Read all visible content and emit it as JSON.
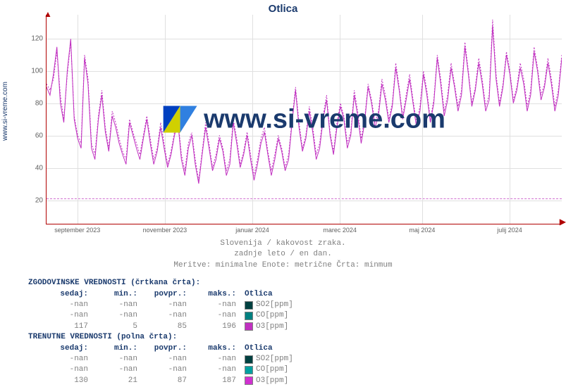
{
  "title": "Otlica",
  "side_label": "www.si-vreme.com",
  "watermark": "www.si-vreme.com",
  "chart": {
    "type": "line",
    "background_color": "#ffffff",
    "grid_color": "#e0e0e0",
    "axis_color": "#b00000",
    "title_fontsize": 15,
    "title_color": "#1a3a6d",
    "label_fontsize": 10,
    "xlim": [
      0,
      365
    ],
    "ylim": [
      5,
      135
    ],
    "yticks": [
      20,
      40,
      60,
      80,
      100,
      120
    ],
    "xticks": [
      {
        "pos": 0.06,
        "label": "september 2023"
      },
      {
        "pos": 0.23,
        "label": "november 2023"
      },
      {
        "pos": 0.4,
        "label": "januar 2024"
      },
      {
        "pos": 0.57,
        "label": "marec 2024"
      },
      {
        "pos": 0.73,
        "label": "maj 2024"
      },
      {
        "pos": 0.9,
        "label": "julij 2024"
      }
    ],
    "ref_line": {
      "y": 21,
      "color": "#d070d0",
      "dash": "3,3"
    },
    "series": [
      {
        "name": "O3 historical",
        "color": "#c030c0",
        "dash": "2,2",
        "width": 1.0,
        "data_key": "hist"
      },
      {
        "name": "O3 current",
        "color": "#c030c0",
        "dash": "none",
        "width": 1.0,
        "data_key": "curr"
      }
    ],
    "data": {
      "hist": [
        92,
        88,
        95,
        112,
        85,
        70,
        98,
        118,
        72,
        60,
        55,
        110,
        95,
        55,
        48,
        72,
        88,
        65,
        52,
        75,
        68,
        58,
        50,
        45,
        70,
        62,
        55,
        48,
        60,
        72,
        58,
        45,
        52,
        68,
        55,
        42,
        50,
        62,
        70,
        48,
        38,
        55,
        62,
        45,
        32,
        50,
        68,
        55,
        40,
        48,
        60,
        52,
        38,
        45,
        70,
        58,
        42,
        50,
        62,
        48,
        35,
        45,
        58,
        65,
        50,
        38,
        48,
        60,
        52,
        40,
        48,
        70,
        90,
        68,
        52,
        60,
        78,
        65,
        48,
        55,
        72,
        85,
        62,
        50,
        68,
        80,
        72,
        55,
        62,
        88,
        75,
        58,
        70,
        92,
        82,
        68,
        75,
        95,
        85,
        70,
        80,
        105,
        90,
        72,
        85,
        98,
        82,
        68,
        78,
        100,
        88,
        70,
        82,
        110,
        95,
        75,
        85,
        105,
        92,
        78,
        88,
        118,
        100,
        80,
        90,
        108,
        95,
        78,
        85,
        132,
        98,
        80,
        92,
        112,
        100,
        82,
        90,
        105,
        95,
        78,
        88,
        115,
        102,
        85,
        92,
        108,
        95,
        78,
        88,
        110
      ],
      "curr": [
        90,
        85,
        98,
        115,
        80,
        68,
        100,
        120,
        70,
        58,
        52,
        108,
        92,
        52,
        45,
        70,
        85,
        62,
        50,
        72,
        65,
        55,
        48,
        42,
        68,
        60,
        52,
        45,
        58,
        70,
        55,
        42,
        50,
        65,
        52,
        40,
        48,
        60,
        68,
        45,
        35,
        52,
        60,
        42,
        30,
        48,
        65,
        52,
        38,
        45,
        58,
        50,
        35,
        42,
        68,
        55,
        40,
        48,
        60,
        45,
        32,
        42,
        55,
        62,
        48,
        35,
        45,
        58,
        50,
        38,
        45,
        68,
        88,
        65,
        50,
        58,
        75,
        62,
        45,
        52,
        70,
        82,
        60,
        48,
        65,
        78,
        70,
        52,
        60,
        85,
        72,
        55,
        68,
        90,
        80,
        65,
        72,
        92,
        82,
        68,
        78,
        102,
        88,
        70,
        82,
        95,
        80,
        65,
        75,
        98,
        85,
        68,
        80,
        108,
        92,
        72,
        82,
        102,
        90,
        75,
        85,
        115,
        98,
        78,
        88,
        105,
        92,
        75,
        82,
        128,
        95,
        78,
        90,
        110,
        98,
        80,
        88,
        102,
        92,
        75,
        85,
        112,
        100,
        82,
        90,
        105,
        92,
        75,
        85,
        108
      ]
    }
  },
  "caption": {
    "line1": "Slovenija / kakovost zraka.",
    "line2": "zadnje leto / en dan.",
    "line3": "Meritve: minimalne  Enote: metrične  Črta: minmum"
  },
  "tables": {
    "hist": {
      "header": "ZGODOVINSKE VREDNOSTI (črtkana črta):",
      "cols": [
        "sedaj:",
        "min.:",
        "povpr.:",
        "maks.:"
      ],
      "legend_header": "Otlica",
      "rows": [
        {
          "cells": [
            "-nan",
            "-nan",
            "-nan",
            "-nan"
          ],
          "swatch": "#004040",
          "label": "SO2[ppm]"
        },
        {
          "cells": [
            "-nan",
            "-nan",
            "-nan",
            "-nan"
          ],
          "swatch": "#008080",
          "label": "CO[ppm]"
        },
        {
          "cells": [
            "117",
            "5",
            "85",
            "196"
          ],
          "swatch": "#c030c0",
          "label": "O3[ppm]"
        }
      ]
    },
    "curr": {
      "header": "TRENUTNE VREDNOSTI (polna črta):",
      "cols": [
        "sedaj:",
        "min.:",
        "povpr.:",
        "maks.:"
      ],
      "legend_header": "Otlica",
      "rows": [
        {
          "cells": [
            "-nan",
            "-nan",
            "-nan",
            "-nan"
          ],
          "swatch": "#004040",
          "label": "SO2[ppm]"
        },
        {
          "cells": [
            "-nan",
            "-nan",
            "-nan",
            "-nan"
          ],
          "swatch": "#00a0a0",
          "label": "CO[ppm]"
        },
        {
          "cells": [
            "130",
            "21",
            "87",
            "187"
          ],
          "swatch": "#d030d0",
          "label": "O3[ppm]"
        }
      ]
    }
  }
}
